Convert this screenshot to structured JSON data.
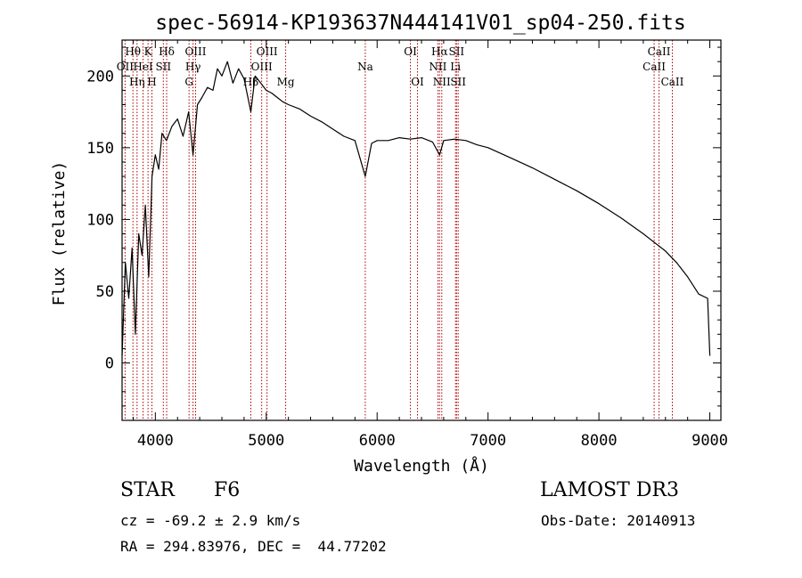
{
  "chart_data": {
    "type": "line",
    "title": "spec-56914-KP193637N444141V01_sp04-250.fits",
    "xlabel": "Wavelength (Å)",
    "ylabel": "Flux (relative)",
    "xlim": [
      3700,
      9100
    ],
    "ylim": [
      -40,
      225
    ],
    "xticks": [
      4000,
      5000,
      6000,
      7000,
      8000,
      9000
    ],
    "yticks": [
      0,
      50,
      100,
      150,
      200
    ],
    "series": [
      {
        "name": "spectrum",
        "x": [
          3700,
          3730,
          3760,
          3790,
          3820,
          3850,
          3880,
          3910,
          3940,
          3970,
          4000,
          4030,
          4060,
          4100,
          4150,
          4200,
          4250,
          4300,
          4340,
          4380,
          4420,
          4470,
          4520,
          4560,
          4600,
          4650,
          4700,
          4750,
          4800,
          4861,
          4900,
          4950,
          5000,
          5050,
          5100,
          5150,
          5200,
          5300,
          5400,
          5500,
          5600,
          5700,
          5800,
          5893,
          5950,
          6000,
          6100,
          6200,
          6300,
          6400,
          6500,
          6563,
          6600,
          6700,
          6800,
          6900,
          7000,
          7200,
          7400,
          7600,
          7800,
          8000,
          8200,
          8400,
          8500,
          8600,
          8700,
          8800,
          8900,
          8980,
          9000
        ],
        "values": [
          5,
          70,
          45,
          80,
          20,
          90,
          75,
          110,
          60,
          130,
          145,
          135,
          160,
          155,
          165,
          170,
          158,
          175,
          145,
          180,
          185,
          192,
          190,
          205,
          200,
          210,
          195,
          205,
          198,
          175,
          200,
          195,
          190,
          188,
          185,
          182,
          180,
          177,
          172,
          168,
          163,
          158,
          155,
          130,
          153,
          155,
          155,
          157,
          156,
          157,
          154,
          145,
          155,
          156,
          155,
          152,
          150,
          143,
          136,
          128,
          120,
          111,
          101,
          90,
          84,
          78,
          70,
          60,
          48,
          45,
          5
        ]
      }
    ],
    "lines": [
      {
        "wavelength": 3798,
        "label": "Hθ",
        "row": 1
      },
      {
        "wavelength": 3727,
        "label": "OII",
        "row": 2
      },
      {
        "wavelength": 3835,
        "label": "Hη",
        "row": 3
      },
      {
        "wavelength": 3889,
        "label": "HeI",
        "row": 2
      },
      {
        "wavelength": 3934,
        "label": "K",
        "row": 1
      },
      {
        "wavelength": 3969,
        "label": "H",
        "row": 3
      },
      {
        "wavelength": 4072,
        "label": "SII",
        "row": 2
      },
      {
        "wavelength": 4102,
        "label": "Hδ",
        "row": 1
      },
      {
        "wavelength": 4340,
        "label": "Hγ",
        "row": 2
      },
      {
        "wavelength": 4304,
        "label": "G",
        "row": 3
      },
      {
        "wavelength": 4363,
        "label": "OIII",
        "row": 1
      },
      {
        "wavelength": 4861,
        "label": "Hβ",
        "row": 3
      },
      {
        "wavelength": 4959,
        "label": "OIII",
        "row": 2
      },
      {
        "wavelength": 5007,
        "label": "OIII",
        "row": 1
      },
      {
        "wavelength": 5175,
        "label": "Mg",
        "row": 3
      },
      {
        "wavelength": 5893,
        "label": "Na",
        "row": 2
      },
      {
        "wavelength": 6300,
        "label": "OI",
        "row": 1
      },
      {
        "wavelength": 6364,
        "label": "OI",
        "row": 3
      },
      {
        "wavelength": 6563,
        "label": "Hα",
        "row": 1
      },
      {
        "wavelength": 6548,
        "label": "NII",
        "row": 2
      },
      {
        "wavelength": 6583,
        "label": "NII",
        "row": 3
      },
      {
        "wavelength": 6707,
        "label": "Li",
        "row": 2
      },
      {
        "wavelength": 6716,
        "label": "SII",
        "row": 1
      },
      {
        "wavelength": 6731,
        "label": "SII",
        "row": 3
      },
      {
        "wavelength": 8498,
        "label": "CaII",
        "row": 2
      },
      {
        "wavelength": 8542,
        "label": "CaII",
        "row": 1
      },
      {
        "wavelength": 8662,
        "label": "CaII",
        "row": 3
      }
    ]
  },
  "info": {
    "class_label": "STAR",
    "subclass": "F6",
    "survey": "LAMOST DR3",
    "redshift": "cz = -69.2 ± 2.9 km/s",
    "obs_date": "Obs-Date: 20140913",
    "coords": "RA = 294.83976, DEC =  44.77202"
  },
  "colors": {
    "spectrum": "#000000",
    "line_marker": "#b00000",
    "axes": "#000000"
  }
}
